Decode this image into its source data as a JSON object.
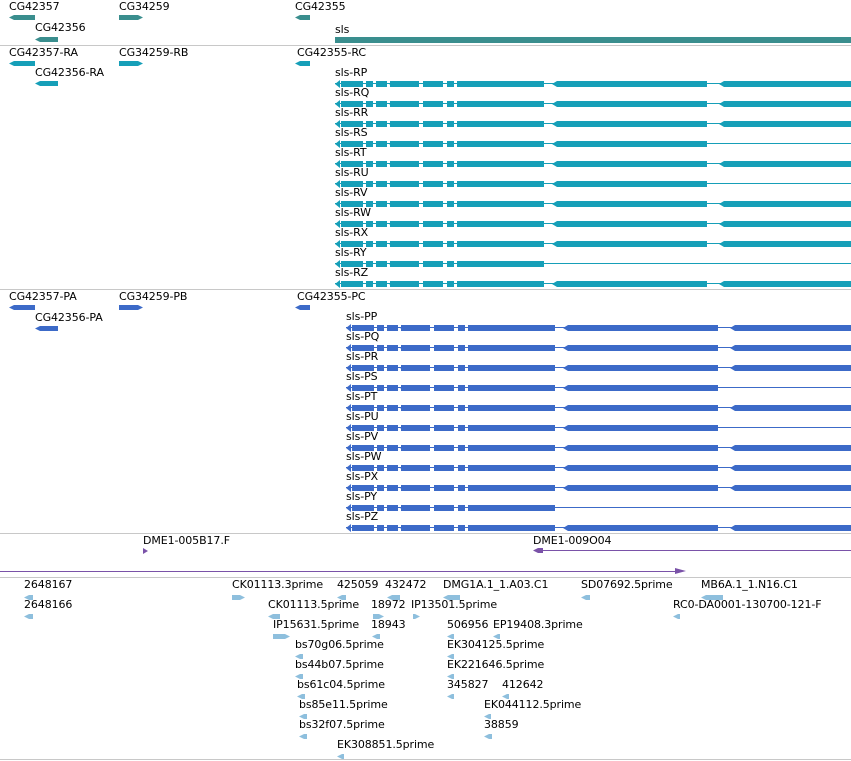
{
  "colors": {
    "gene": "#3a8e8e",
    "rna": "#169fb8",
    "protein": "#3c6ac8",
    "clone": "#7a52a8",
    "est": "#8ebfdd",
    "separator": "#c8c8c8"
  },
  "genes_track": {
    "items": [
      "CG42357",
      "CG42356",
      "CG34259",
      "CG42355",
      "sls"
    ]
  },
  "rna_track": {
    "items": [
      "CG42357-RA",
      "CG42356-RA",
      "CG34259-RB",
      "CG42355-RC"
    ],
    "sls_transcripts": [
      "sls-RP",
      "sls-RQ",
      "sls-RR",
      "sls-RS",
      "sls-RT",
      "sls-RU",
      "sls-RV",
      "sls-RW",
      "sls-RX",
      "sls-RY",
      "sls-RZ"
    ]
  },
  "protein_track": {
    "items": [
      "CG42357-PA",
      "CG42356-PA",
      "CG34259-PB",
      "CG42355-PC"
    ],
    "sls_proteins": [
      "sls-PP",
      "sls-PQ",
      "sls-PR",
      "sls-PS",
      "sls-PT",
      "sls-PU",
      "sls-PV",
      "sls-PW",
      "sls-PX",
      "sls-PY",
      "sls-PZ"
    ]
  },
  "clone_track": {
    "items": [
      "DME1-005B17.F",
      "DME1-009O04"
    ]
  },
  "est_track": {
    "items": [
      "2648167",
      "2648166",
      "CK01113.3prime",
      "425059",
      "432472",
      "DMG1A.1_1.A03.C1",
      "SD07692.5prime",
      "MB6A.1_1.N16.C1",
      "CK01113.5prime",
      "18972",
      "IP13501.5prime",
      "RC0-DA0001-130700-121-F",
      "IP15631.5prime",
      "18943",
      "506956",
      "EP19408.3prime",
      "bs70g06.5prime",
      "EK304125.5prime",
      "bs44b07.5prime",
      "EK221646.5prime",
      "bs61c04.5prime",
      "345827",
      "412642",
      "bs85e11.5prime",
      "EK044112.5prime",
      "bs32f07.5prime",
      "38859",
      "EK308851.5prime"
    ]
  }
}
